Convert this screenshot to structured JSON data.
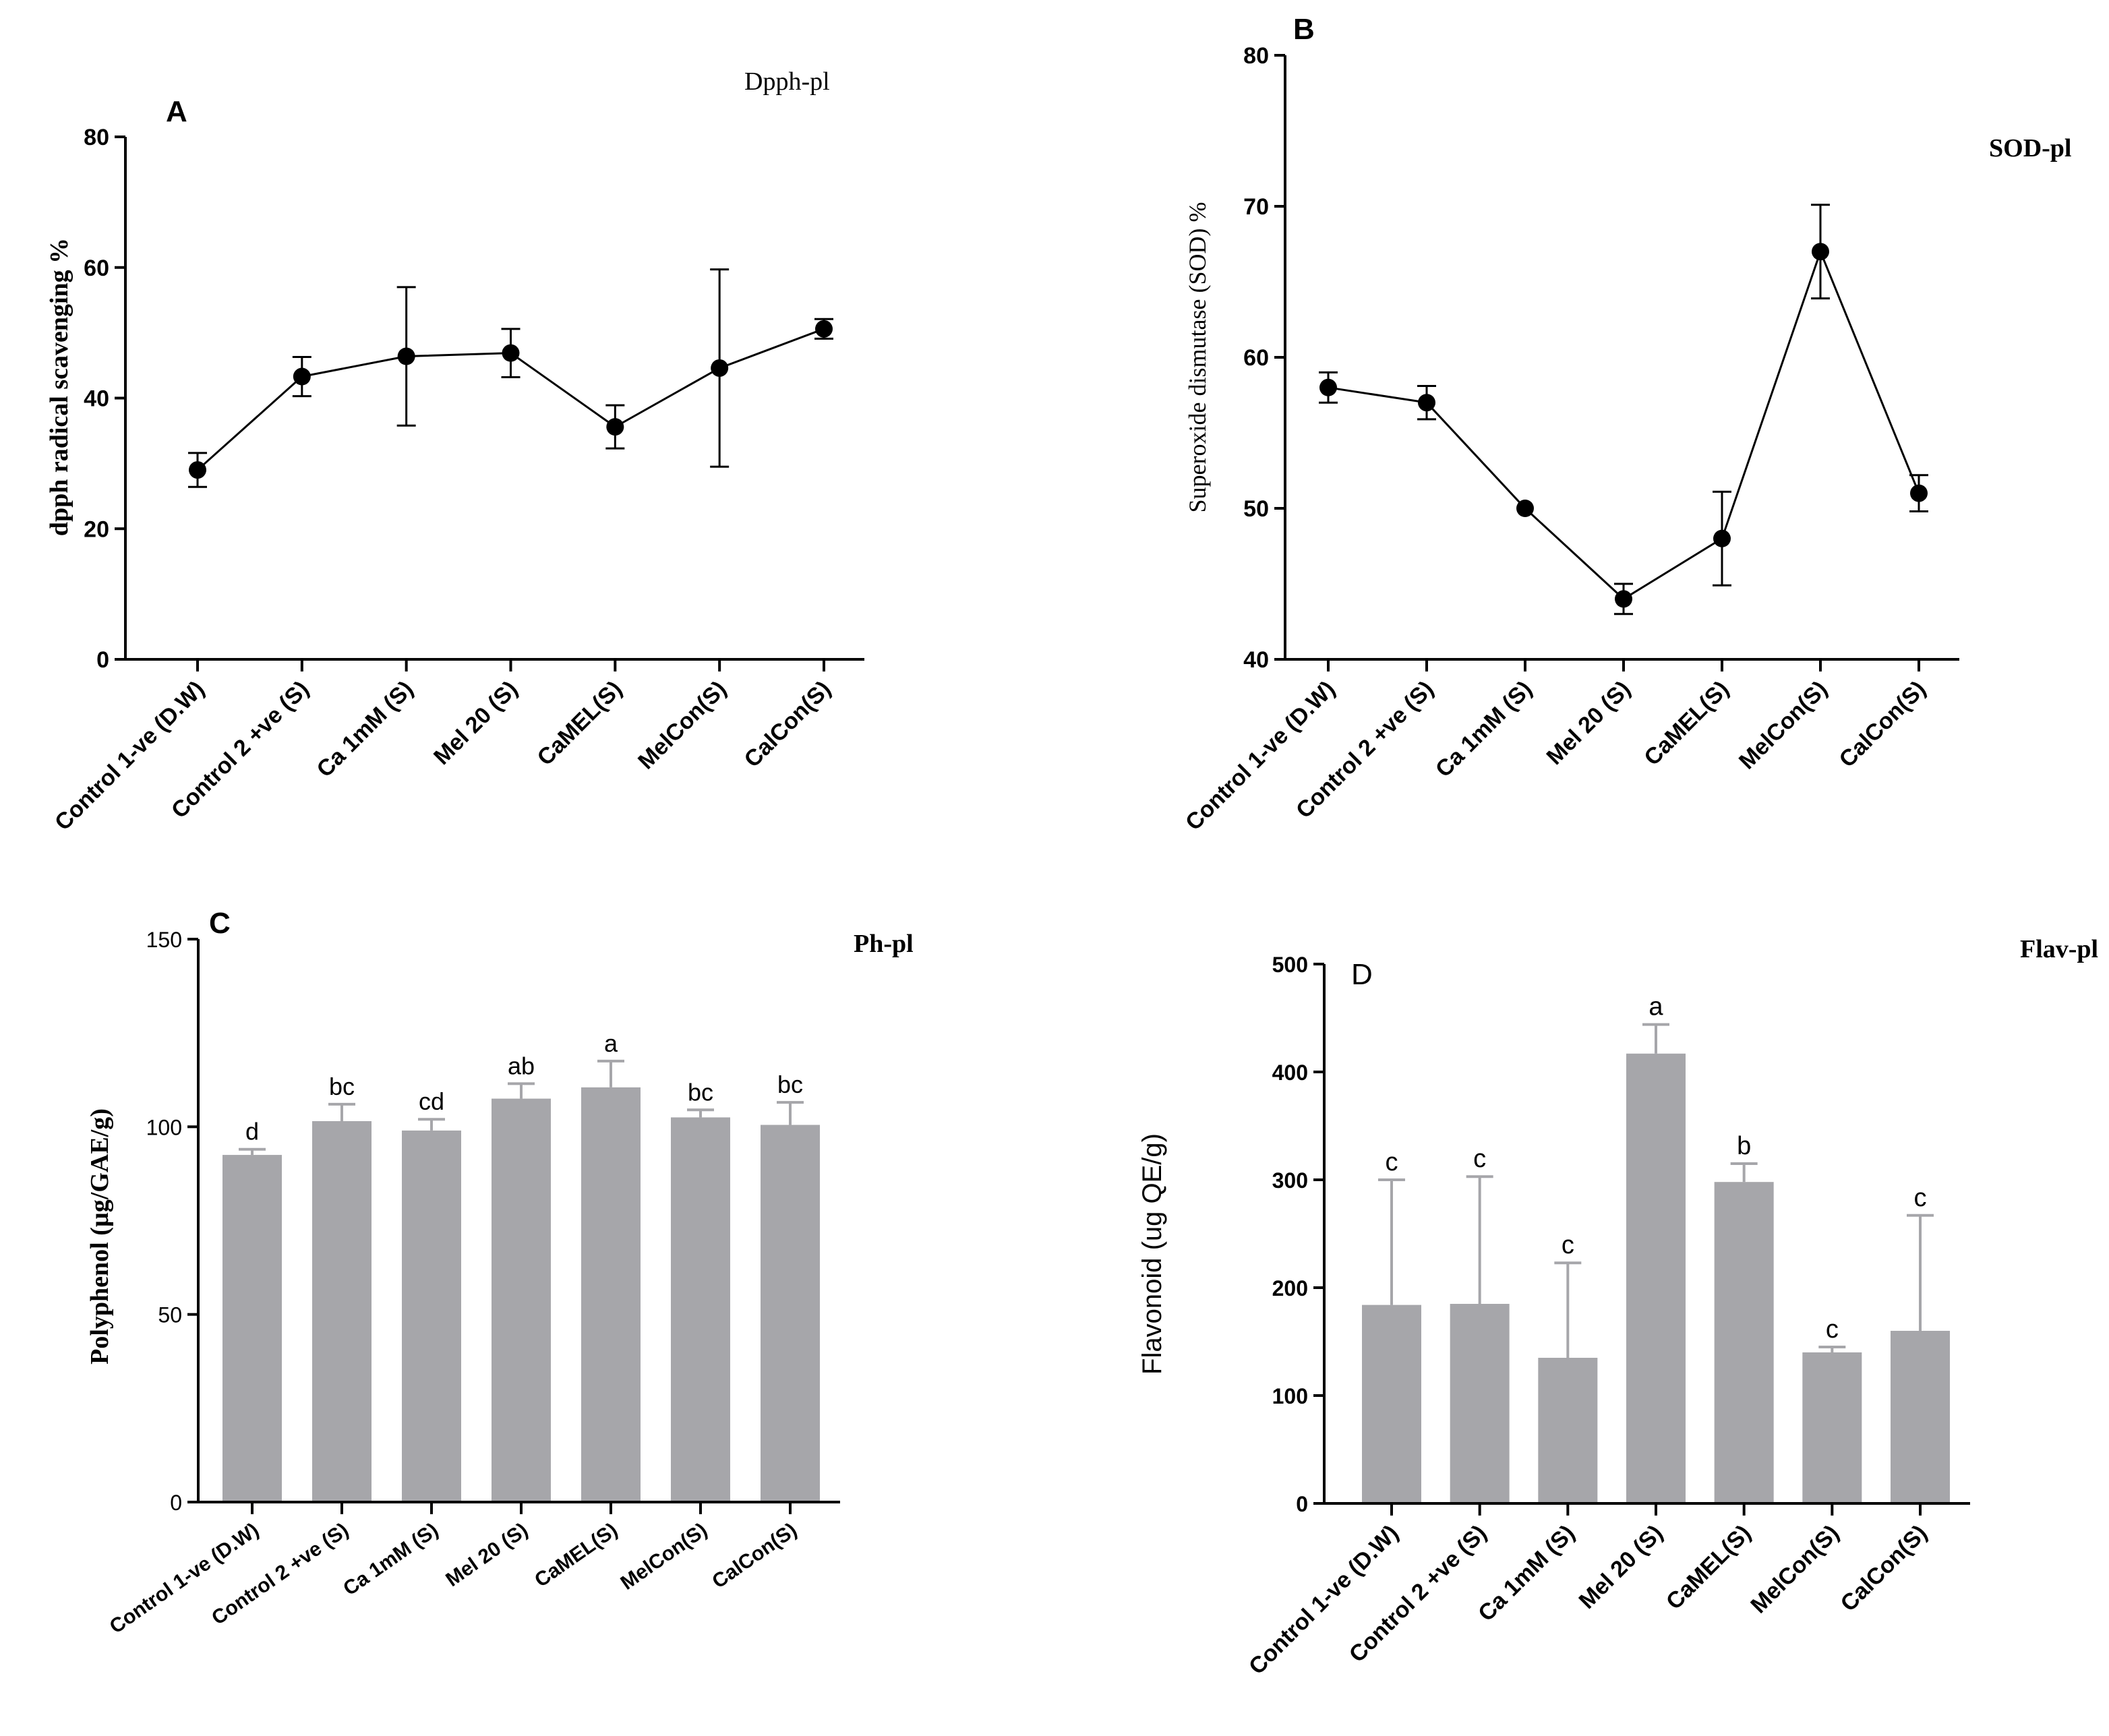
{
  "figure": {
    "panels": [
      {
        "panel_label": "A",
        "chart_title": "Dpph-pl",
        "ylabel": "dpph radical scavengіng %",
        "type": "line"
      },
      {
        "panel_label": "B",
        "chart_title": "SOD-pl",
        "ylabel": "Superoxide dismutase (SOD) %",
        "type": "line"
      },
      {
        "panel_label": "C",
        "chart_title": "Ph-pl",
        "ylabel": "Polyphenol (µg/GAE/g)",
        "type": "bar"
      },
      {
        "panel_label": "D",
        "chart_title": "Flav-pl",
        "ylabel": "Flavonoid (ug QE/g)",
        "type": "bar"
      }
    ]
  },
  "chart_data": [
    {
      "type": "line",
      "panel": "A",
      "title": "Dpph-pl",
      "xlabel": "",
      "ylabel": "dpph radical scavenging %",
      "categories": [
        "Control 1-ve (D.W)",
        "Control 2 +ve (S)",
        "Ca 1mM (S)",
        "Mel 20 (S)",
        "CaMEL(S)",
        "MelCon(S)",
        "CalCon(S)"
      ],
      "values": [
        29,
        43.3,
        46.4,
        46.9,
        35.6,
        44.6,
        50.6
      ],
      "errors": [
        2.6,
        3.0,
        10.6,
        3.7,
        3.3,
        15.1,
        1.5
      ],
      "ylim": [
        0,
        80
      ],
      "yticks": [
        0,
        20,
        40,
        60,
        80
      ],
      "color": "#000000"
    },
    {
      "type": "line",
      "panel": "B",
      "title": "SOD-pl",
      "xlabel": "",
      "ylabel": "Superoxide dismutase (SOD) %",
      "categories": [
        "Control 1-ve (D.W)",
        "Control 2 +ve (S)",
        "Ca 1mM (S)",
        "Mel 20 (S)",
        "CaMEL(S)",
        "MelCon(S)",
        "CalCon(S)"
      ],
      "values": [
        58,
        57,
        50,
        44,
        48,
        67,
        51
      ],
      "errors": [
        1.0,
        1.1,
        0,
        1.0,
        3.1,
        3.1,
        1.2
      ],
      "ylim": [
        40,
        80
      ],
      "yticks": [
        40,
        50,
        60,
        70,
        80
      ],
      "color": "#000000"
    },
    {
      "type": "bar",
      "panel": "C",
      "title": "Ph-pl",
      "xlabel": "",
      "ylabel": "Polyphenol (µg/GAE/g)",
      "categories": [
        "Control 1-ve (D.W)",
        "Control 2 +ve (S)",
        "Ca 1mM (S)",
        "Mel 20 (S)",
        "CaMEL(S)",
        "MelCon(S)",
        "CalCon(S)"
      ],
      "values": [
        92.5,
        101.5,
        99,
        107.5,
        110.5,
        102.5,
        100.5
      ],
      "errors": [
        1.5,
        4.5,
        3.0,
        4.0,
        7.0,
        2.0,
        6.0
      ],
      "letters": [
        "d",
        "bc",
        "cd",
        "ab",
        "a",
        "bc",
        "bc"
      ],
      "ylim": [
        0,
        150
      ],
      "yticks": [
        0,
        50,
        100,
        150
      ],
      "bar_color": "#a6a6aa"
    },
    {
      "type": "bar",
      "panel": "D",
      "title": "Flav-pl",
      "xlabel": "",
      "ylabel": "Flavonoid (ug QE/g)",
      "categories": [
        "Control 1-ve (D.W)",
        "Control 2 +ve (S)",
        "Ca 1mM (S)",
        "Mel 20 (S)",
        "CaMEL(S)",
        "MelCon(S)",
        "CalCon(S)"
      ],
      "values": [
        184,
        185,
        135,
        417,
        298,
        140,
        160
      ],
      "errors": [
        116,
        118,
        88,
        27,
        17,
        5,
        107
      ],
      "letters": [
        "c",
        "c",
        "c",
        "a",
        "b",
        "c",
        "c"
      ],
      "ylim": [
        0,
        500
      ],
      "yticks": [
        0,
        100,
        200,
        300,
        400,
        500
      ],
      "bar_color": "#a6a6aa"
    }
  ]
}
